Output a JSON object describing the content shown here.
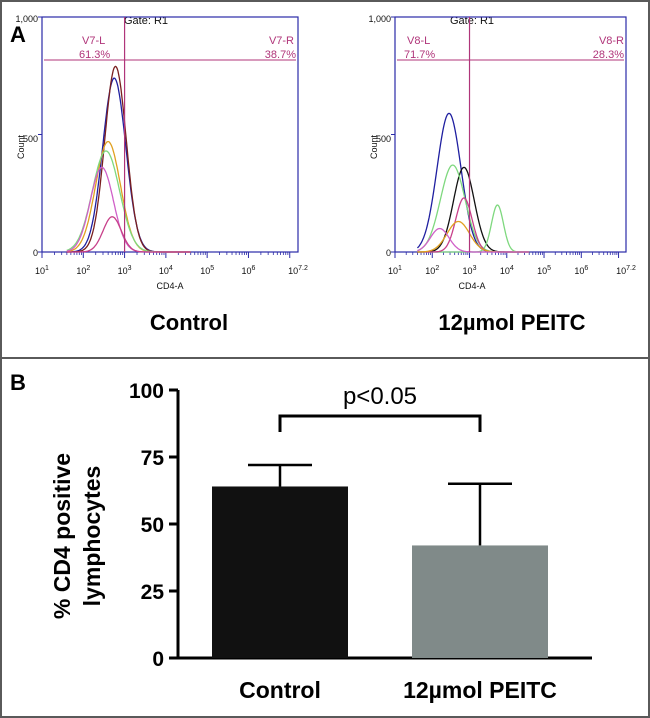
{
  "panel_a": {
    "label": "A",
    "plots": [
      {
        "gate": "Gate: R1",
        "ytick_labels": [
          "1,000",
          "500",
          "0"
        ],
        "ylabel": "Count",
        "xlabel": "CD4-A",
        "xtick_labels": [
          "10^1",
          "10^2",
          "10^3",
          "10^4",
          "10^5",
          "10^6",
          "10^7.2"
        ],
        "left_region": "V7-L",
        "left_percent": "61.3%",
        "right_region": "V7-R",
        "right_percent": "38.7%",
        "caption": "Control",
        "peaks": [
          {
            "color": "#1f1fa0",
            "center": 2.75,
            "height": 740,
            "width": 0.28
          },
          {
            "color": "#7a1f1f",
            "center": 2.78,
            "height": 790,
            "width": 0.26
          },
          {
            "color": "#e0a020",
            "center": 2.6,
            "height": 470,
            "width": 0.3
          },
          {
            "color": "#7ed87e",
            "center": 2.55,
            "height": 430,
            "width": 0.33
          },
          {
            "color": "#d060c8",
            "center": 2.45,
            "height": 360,
            "width": 0.28
          },
          {
            "color": "#c8408a",
            "center": 2.7,
            "height": 150,
            "width": 0.22
          }
        ]
      },
      {
        "gate": "Gate: R1",
        "ytick_labels": [
          "1,000",
          "500",
          "0"
        ],
        "ylabel": "Count",
        "xlabel": "CD4-A",
        "xtick_labels": [
          "10^1",
          "10^2",
          "10^3",
          "10^4",
          "10^5",
          "10^6",
          "10^7.2"
        ],
        "left_region": "V8-L",
        "left_percent": "71.7%",
        "right_region": "V8-R",
        "right_percent": "28.3%",
        "caption": "12µmol PEITC",
        "peaks": [
          {
            "color": "#1f1fa0",
            "center": 2.45,
            "height": 590,
            "width": 0.32
          },
          {
            "color": "#111111",
            "center": 2.85,
            "height": 360,
            "width": 0.28
          },
          {
            "color": "#7ed87e",
            "center": 2.55,
            "height": 370,
            "width": 0.33
          },
          {
            "color": "#7ed87e",
            "center": 3.75,
            "height": 200,
            "width": 0.16
          },
          {
            "color": "#c8408a",
            "center": 2.85,
            "height": 230,
            "width": 0.22
          },
          {
            "color": "#e0a020",
            "center": 2.7,
            "height": 130,
            "width": 0.3
          },
          {
            "color": "#d060c8",
            "center": 2.2,
            "height": 100,
            "width": 0.25
          }
        ]
      }
    ]
  },
  "panel_b": {
    "label": "B",
    "p_value": "p<0.05"
  },
  "chart_data": {
    "type": "bar",
    "categories": [
      "Control",
      "12µmol PEITC"
    ],
    "values": [
      64,
      42
    ],
    "errors": [
      8,
      23
    ],
    "bar_colors": [
      "#111111",
      "#808a89"
    ],
    "ylabel": "% CD4 positive lymphocytes",
    "ylabel_lines": [
      "% CD4 positive",
      "lymphocytes"
    ],
    "ylim": [
      0,
      100
    ],
    "yticks": [
      0,
      25,
      50,
      75,
      100
    ],
    "ytick_labels": [
      "0",
      "25",
      "50",
      "75",
      "100"
    ],
    "annotation": "p<0.05"
  }
}
